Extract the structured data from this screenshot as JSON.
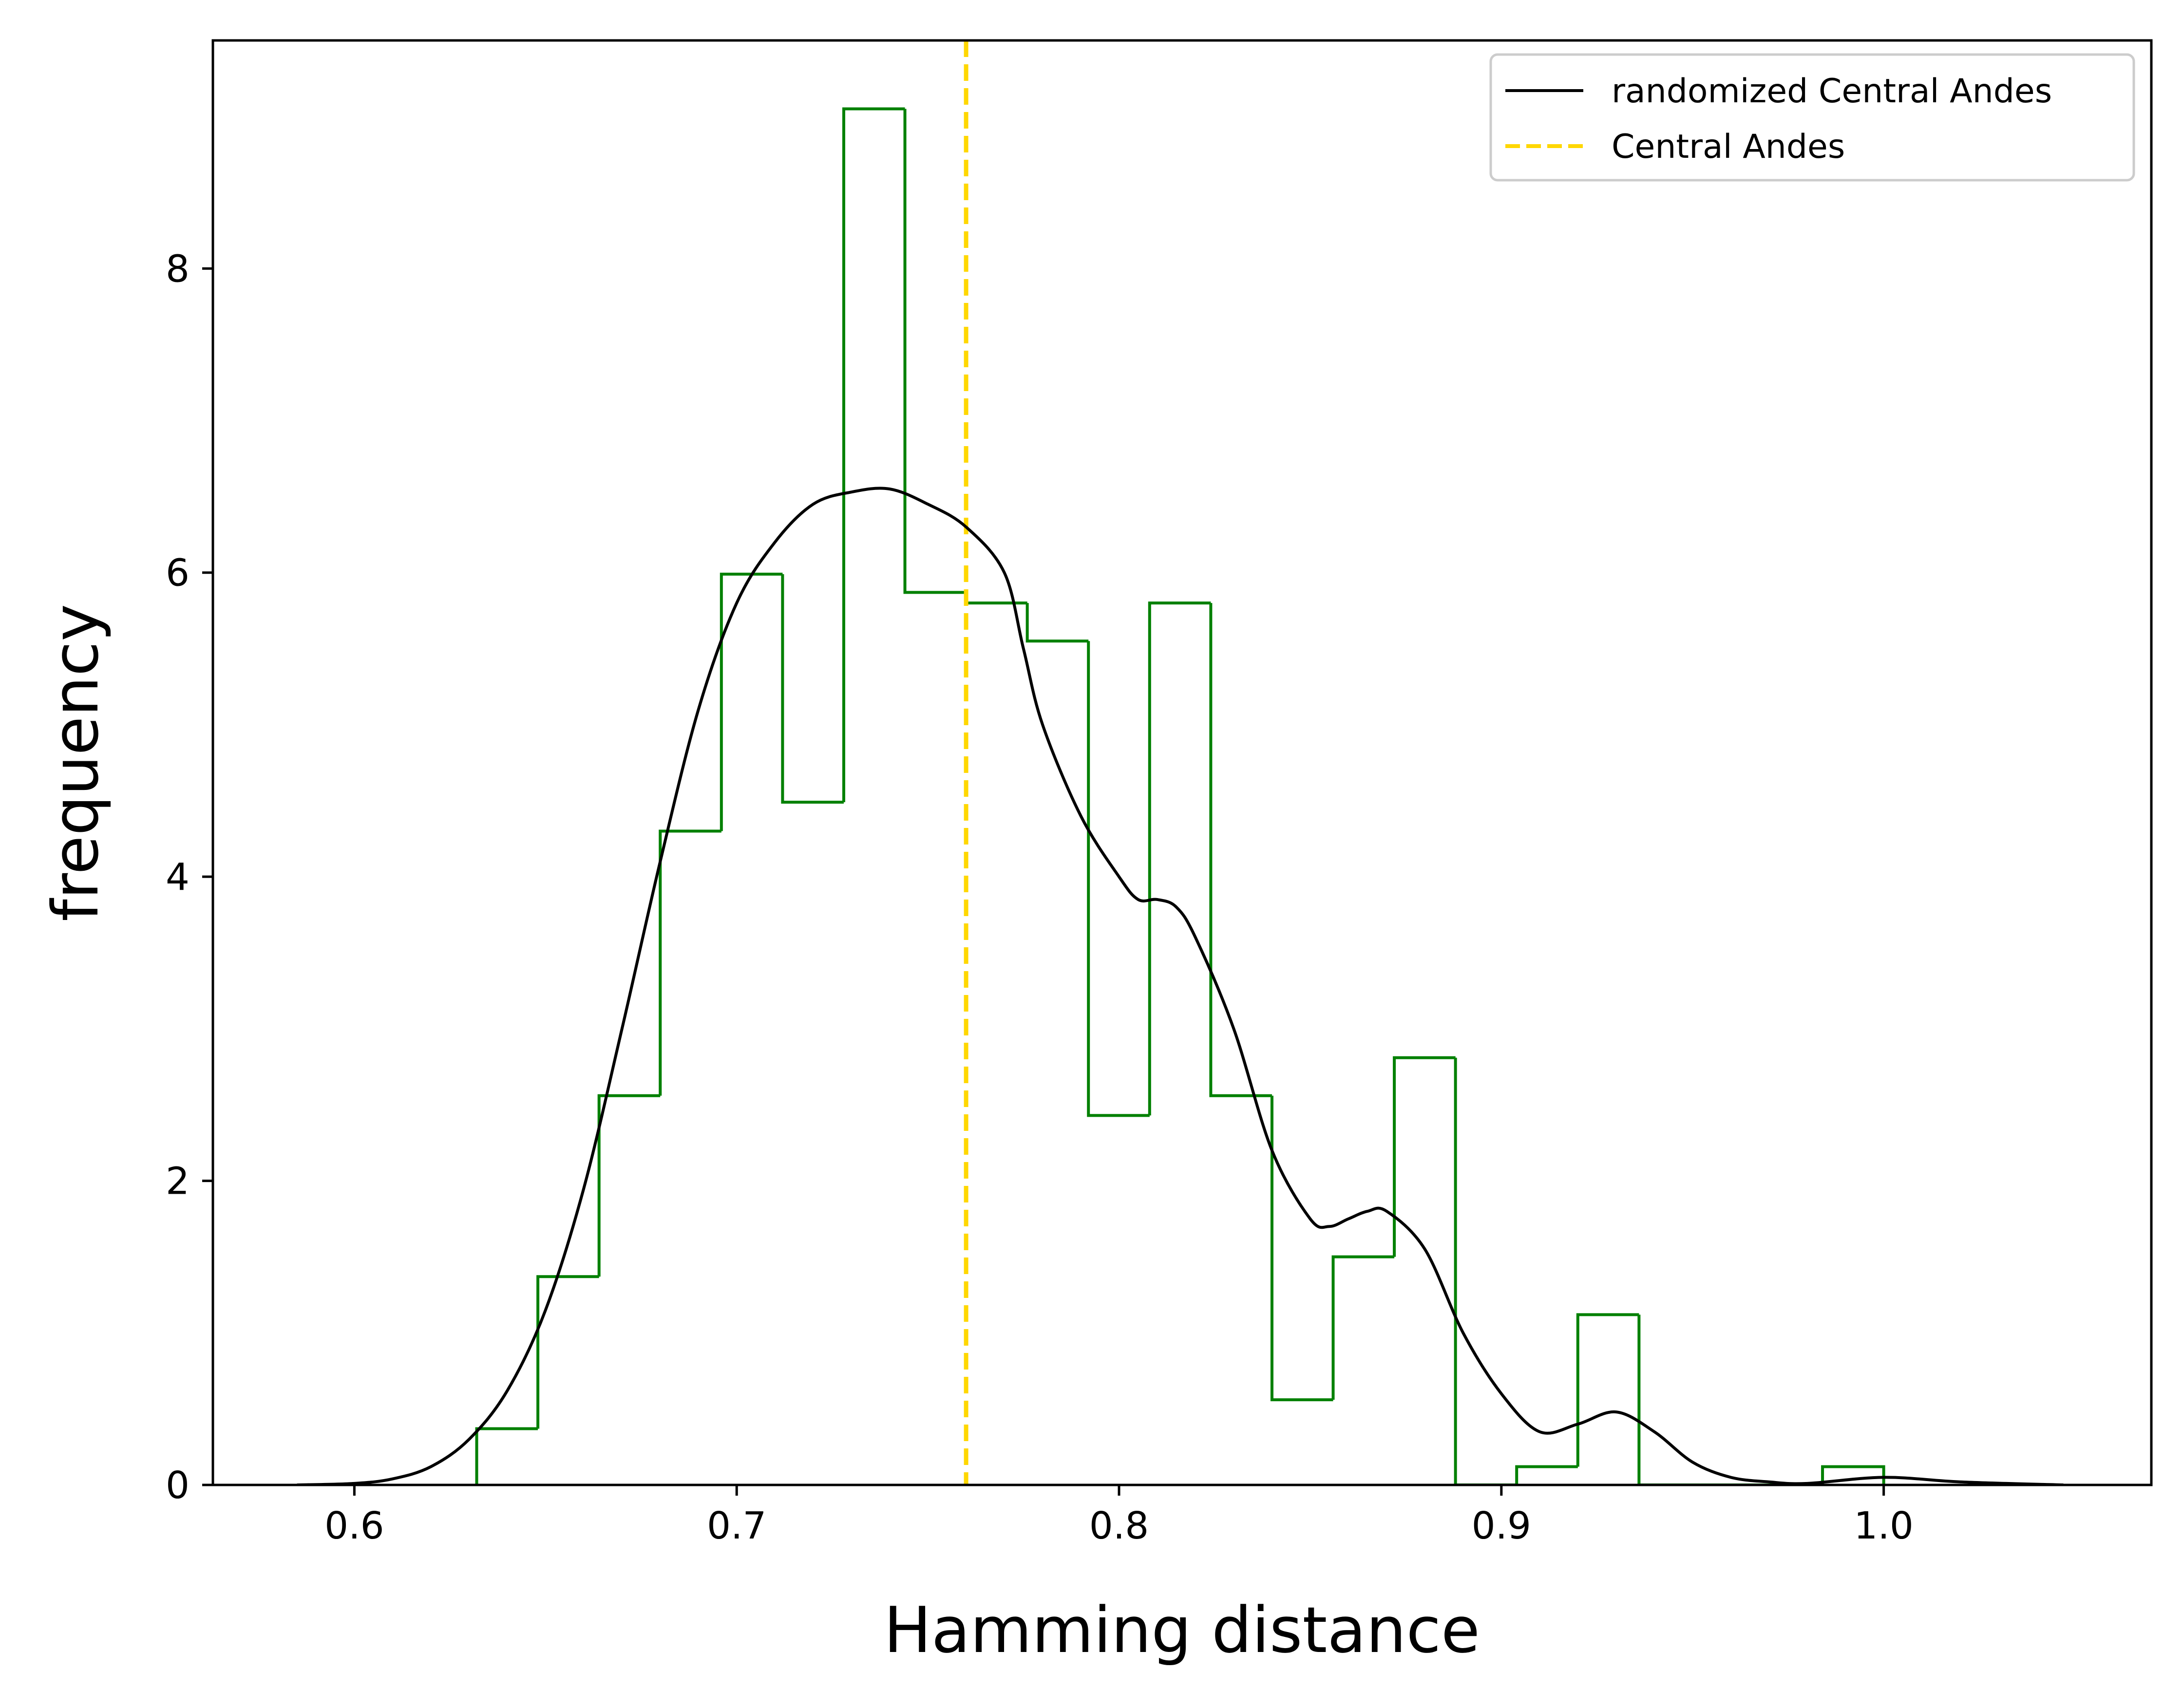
{
  "chart_data": {
    "type": "histogram",
    "xlabel": "Hamming distance",
    "ylabel": "frequency",
    "xlim": [
      0.563,
      1.07
    ],
    "ylim": [
      0,
      9.5
    ],
    "x_ticks": [
      {
        "value": 0.6,
        "label": "0.6"
      },
      {
        "value": 0.7,
        "label": "0.7"
      },
      {
        "value": 0.8,
        "label": "0.8"
      },
      {
        "value": 0.9,
        "label": "0.9"
      },
      {
        "value": 1.0,
        "label": "1.0"
      }
    ],
    "y_ticks": [
      {
        "value": 0,
        "label": "0"
      },
      {
        "value": 2,
        "label": "2"
      },
      {
        "value": 4,
        "label": "4"
      },
      {
        "value": 6,
        "label": "6"
      },
      {
        "value": 8,
        "label": "8"
      }
    ],
    "histogram": {
      "color": "#008000",
      "bin_edges": [
        0.632,
        0.648,
        0.664,
        0.68,
        0.696,
        0.712,
        0.728,
        0.744,
        0.76,
        0.776,
        0.792,
        0.808,
        0.824,
        0.84,
        0.856,
        0.872,
        0.888,
        0.904,
        0.92,
        0.936,
        0.952,
        0.968,
        0.984,
        1.0
      ],
      "counts": [
        0.37,
        1.37,
        2.56,
        4.3,
        5.99,
        4.49,
        9.05,
        5.87,
        5.8,
        5.55,
        2.43,
        5.8,
        2.56,
        0.56,
        1.5,
        2.81,
        0.0,
        0.12,
        1.12,
        0.0,
        0.0,
        0.0,
        0.12
      ]
    },
    "series": [
      {
        "name": "randomized Central Andes",
        "style": "solid",
        "color": "#000000",
        "x": [
          0.585,
          0.6,
          0.61,
          0.62,
          0.63,
          0.64,
          0.65,
          0.66,
          0.67,
          0.68,
          0.69,
          0.7,
          0.71,
          0.72,
          0.73,
          0.74,
          0.75,
          0.76,
          0.77,
          0.775,
          0.78,
          0.79,
          0.8,
          0.805,
          0.81,
          0.815,
          0.82,
          0.83,
          0.84,
          0.85,
          0.855,
          0.86,
          0.865,
          0.87,
          0.88,
          0.89,
          0.9,
          0.91,
          0.92,
          0.93,
          0.94,
          0.95,
          0.96,
          0.97,
          0.98,
          1.0,
          1.02,
          1.047
        ],
        "y": [
          0.0,
          0.01,
          0.04,
          0.12,
          0.3,
          0.62,
          1.15,
          1.95,
          3.0,
          4.1,
          5.1,
          5.8,
          6.2,
          6.45,
          6.53,
          6.55,
          6.45,
          6.3,
          6.0,
          5.5,
          5.0,
          4.4,
          4.0,
          3.85,
          3.85,
          3.8,
          3.6,
          3.0,
          2.2,
          1.75,
          1.7,
          1.75,
          1.8,
          1.8,
          1.55,
          1.0,
          0.6,
          0.35,
          0.4,
          0.48,
          0.35,
          0.15,
          0.05,
          0.02,
          0.01,
          0.05,
          0.02,
          0.0
        ]
      },
      {
        "name": "Central Andes",
        "style": "dashed",
        "color": "#FFD700",
        "x": 0.76
      }
    ],
    "legend": {
      "placement": "top-right",
      "entries": [
        "randomized Central Andes",
        "Central Andes"
      ]
    },
    "grid": false
  }
}
